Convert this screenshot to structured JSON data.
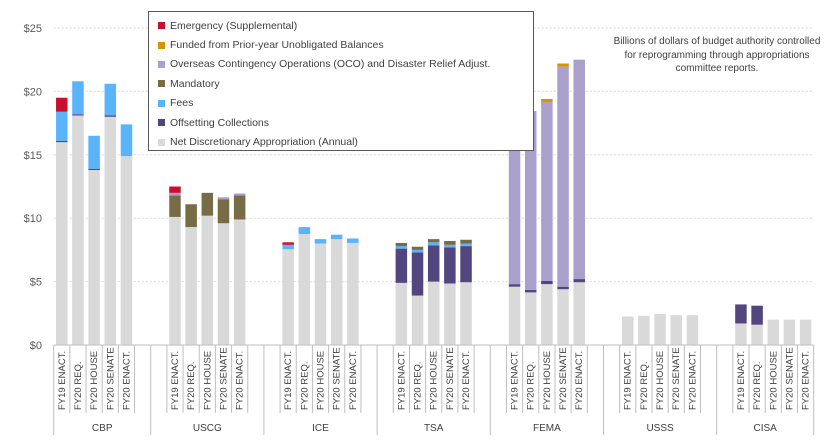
{
  "chart_data": {
    "type": "bar",
    "stacked": true,
    "title": "",
    "note": "Billions of dollars of budget authority controlled for reprogramming through appropriations committee reports.",
    "ylabel": "",
    "ylim": [
      0,
      25
    ],
    "yticks": [
      0,
      5,
      10,
      15,
      20,
      25
    ],
    "ytick_labels": [
      "$0",
      "$5",
      "$10",
      "$15",
      "$20",
      "$25"
    ],
    "grid": true,
    "legend_position": "top-left",
    "groups": [
      "CBP",
      "USCG",
      "ICE",
      "TSA",
      "FEMA",
      "USSS",
      "CISA"
    ],
    "subcategories": [
      "FY19 ENACT.",
      "FY20 REQ.",
      "FY20 HOUSE",
      "FY20 SENATE",
      "FY20 ENACT."
    ],
    "legend": [
      {
        "name": "Emergency (Supplemental)",
        "color": "#C8102E"
      },
      {
        "name": "Funded from Prior-year Unobligated Balances",
        "color": "#D4940A"
      },
      {
        "name": "Overseas Contingency Operations (OCO) and Disaster Relief Adjust.",
        "color": "#A9A0CC"
      },
      {
        "name": "Mandatory",
        "color": "#786C46"
      },
      {
        "name": "Fees",
        "color": "#5AB4FA"
      },
      {
        "name": "Offsetting Collections",
        "color": "#53457E"
      },
      {
        "name": "Net Discretionary Appropriation (Annual)",
        "color": "#D9D9D9"
      }
    ],
    "series": [
      {
        "name": "Net Discretionary Appropriation (Annual)",
        "color": "#D9D9D9",
        "values": [
          [
            16.0,
            18.1,
            13.8,
            18.0,
            14.9
          ],
          [
            10.1,
            9.3,
            10.2,
            9.6,
            9.9
          ],
          [
            7.55,
            8.75,
            8.0,
            8.35,
            8.05
          ],
          [
            4.9,
            3.9,
            5.0,
            4.85,
            4.95
          ],
          [
            4.6,
            4.15,
            4.8,
            4.4,
            4.95
          ],
          [
            2.25,
            2.3,
            2.45,
            2.35,
            2.35
          ],
          [
            1.7,
            1.6,
            2.0,
            2.0,
            2.0
          ]
        ]
      },
      {
        "name": "Offsetting Collections",
        "color": "#53457E",
        "values": [
          [
            0.1,
            0.1,
            0.1,
            0.1,
            0
          ],
          [
            0,
            0,
            0,
            0,
            0
          ],
          [
            0,
            0,
            0,
            0,
            0
          ],
          [
            2.7,
            3.4,
            2.85,
            2.85,
            2.85
          ],
          [
            0.2,
            0.2,
            0.25,
            0.2,
            0.25
          ],
          [
            0,
            0,
            0,
            0,
            0
          ],
          [
            1.5,
            1.5,
            0,
            0,
            0
          ]
        ]
      },
      {
        "name": "Fees",
        "color": "#5AB4FA",
        "values": [
          [
            2.3,
            2.6,
            2.6,
            2.5,
            2.5
          ],
          [
            0,
            0,
            0,
            0,
            0
          ],
          [
            0.35,
            0.55,
            0.35,
            0.35,
            0.35
          ],
          [
            0.2,
            0.2,
            0.25,
            0.2,
            0.2
          ],
          [
            0,
            0,
            0,
            0,
            0
          ],
          [
            0,
            0,
            0,
            0,
            0
          ],
          [
            0,
            0,
            0,
            0,
            0
          ]
        ]
      },
      {
        "name": "Mandatory",
        "color": "#786C46",
        "values": [
          [
            0,
            0,
            0,
            0,
            0
          ],
          [
            1.7,
            1.8,
            1.8,
            1.9,
            1.9
          ],
          [
            0,
            0,
            0,
            0,
            0
          ],
          [
            0.25,
            0.25,
            0.25,
            0.3,
            0.3
          ],
          [
            0,
            0,
            0,
            0,
            0
          ],
          [
            0,
            0,
            0,
            0,
            0
          ],
          [
            0,
            0,
            0,
            0,
            0
          ]
        ]
      },
      {
        "name": "Overseas Contingency Operations (OCO) and Disaster Relief Adjust.",
        "color": "#A9A0CC",
        "values": [
          [
            0,
            0,
            0,
            0,
            0
          ],
          [
            0.2,
            0,
            0,
            0.15,
            0.15
          ],
          [
            0,
            0,
            0,
            0,
            0
          ],
          [
            0,
            0,
            0,
            0,
            0
          ],
          [
            12.0,
            14.1,
            14.1,
            17.35,
            17.3
          ],
          [
            0,
            0,
            0,
            0,
            0
          ],
          [
            0,
            0,
            0,
            0,
            0
          ]
        ]
      },
      {
        "name": "Funded from Prior-year Unobligated Balances",
        "color": "#D4940A",
        "values": [
          [
            0,
            0,
            0,
            0,
            0
          ],
          [
            0,
            0,
            0,
            0,
            0
          ],
          [
            0,
            0,
            0,
            0,
            0
          ],
          [
            0,
            0,
            0,
            0,
            0
          ],
          [
            0.25,
            0,
            0.25,
            0.25,
            0
          ],
          [
            0,
            0,
            0,
            0,
            0
          ],
          [
            0,
            0,
            0,
            0,
            0
          ]
        ]
      },
      {
        "name": "Emergency (Supplemental)",
        "color": "#C8102E",
        "values": [
          [
            1.1,
            0,
            0,
            0,
            0
          ],
          [
            0.5,
            0,
            0,
            0,
            0
          ],
          [
            0.2,
            0,
            0,
            0,
            0
          ],
          [
            0,
            0,
            0,
            0,
            0
          ],
          [
            0.1,
            0,
            0,
            0,
            0
          ],
          [
            0,
            0,
            0,
            0,
            0
          ],
          [
            0,
            0,
            0,
            0,
            0
          ]
        ]
      }
    ]
  }
}
